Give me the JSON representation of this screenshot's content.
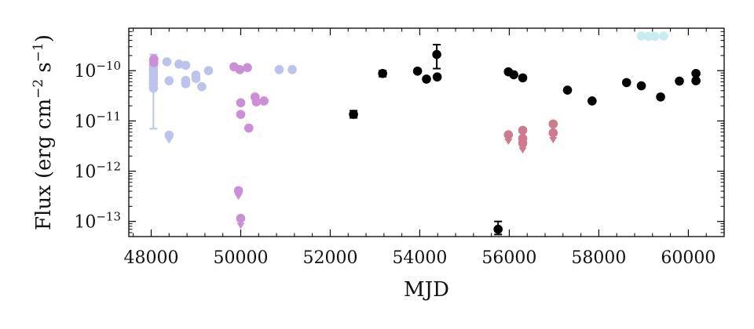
{
  "chart_data": {
    "type": "scatter",
    "title": "",
    "xlabel": "MJD",
    "ylabel_parts": {
      "main": "Flux (erg cm",
      "exp1": "−2",
      "mid": " s",
      "exp2": "−1",
      "close": ")"
    },
    "x_scale": "linear",
    "y_scale": "log",
    "xlim": [
      47500,
      60800
    ],
    "ylim": [
      5e-14,
      7e-10
    ],
    "xticks": [
      48000,
      50000,
      52000,
      54000,
      56000,
      58000,
      60000
    ],
    "xtick_labels": [
      "48000",
      "50000",
      "52000",
      "54000",
      "56000",
      "58000",
      "60000"
    ],
    "yticks": [
      1e-13,
      1e-12,
      1e-11,
      1e-10
    ],
    "ytick_labels": [
      {
        "base": "10",
        "exp": "−13"
      },
      {
        "base": "10",
        "exp": "−12"
      },
      {
        "base": "10",
        "exp": "−11"
      },
      {
        "base": "10",
        "exp": "−10"
      }
    ],
    "grid": false,
    "legend": "none",
    "series": [
      {
        "color": "#bcc4ee",
        "points": [
          {
            "x": 48050,
            "y": 1.6e-10,
            "err": [
              1.2e-10,
              2.1e-10
            ]
          },
          {
            "x": 48050,
            "y": 1.3e-10
          },
          {
            "x": 48050,
            "y": 1.1e-10
          },
          {
            "x": 48050,
            "y": 9.5e-11
          },
          {
            "x": 48050,
            "y": 8.5e-11
          },
          {
            "x": 48050,
            "y": 7.5e-11
          },
          {
            "x": 48050,
            "y": 6.5e-11
          },
          {
            "x": 48050,
            "y": 5.5e-11
          },
          {
            "x": 48050,
            "y": 4.5e-11,
            "err": [
              7e-12,
              7e-11
            ]
          },
          {
            "x": 48350,
            "y": 1.5e-10
          },
          {
            "x": 48400,
            "y": 6.3e-11
          },
          {
            "x": 48400,
            "y": 5.2e-12
          },
          {
            "x": 48400,
            "y": 4.2e-12,
            "upper_limit": true
          },
          {
            "x": 48620,
            "y": 1.35e-10
          },
          {
            "x": 48770,
            "y": 1.28e-10
          },
          {
            "x": 48770,
            "y": 6.4e-11
          },
          {
            "x": 48770,
            "y": 5.5e-11
          },
          {
            "x": 49000,
            "y": 8.2e-11
          },
          {
            "x": 49000,
            "y": 7e-11
          },
          {
            "x": 49130,
            "y": 4.8e-11
          },
          {
            "x": 49280,
            "y": 1e-10
          },
          {
            "x": 50860,
            "y": 1.05e-10
          },
          {
            "x": 51150,
            "y": 1.05e-10
          }
        ]
      },
      {
        "color": "#cc8ed6",
        "points": [
          {
            "x": 48060,
            "y": 1.7e-10
          },
          {
            "x": 48060,
            "y": 1.45e-10
          },
          {
            "x": 49850,
            "y": 1.2e-10
          },
          {
            "x": 49980,
            "y": 1.05e-10
          },
          {
            "x": 50150,
            "y": 1.15e-10
          },
          {
            "x": 50000,
            "y": 2.3e-11
          },
          {
            "x": 50000,
            "y": 1.35e-11
          },
          {
            "x": 50180,
            "y": 7.2e-12
          },
          {
            "x": 50320,
            "y": 3e-11
          },
          {
            "x": 50350,
            "y": 2.4e-11
          },
          {
            "x": 50520,
            "y": 2.5e-11
          },
          {
            "x": 49950,
            "y": 4.1e-13
          },
          {
            "x": 49950,
            "y": 3.2e-13,
            "upper_limit": true
          },
          {
            "x": 50000,
            "y": 1.15e-13
          },
          {
            "x": 50000,
            "y": 8.5e-14,
            "upper_limit": true
          }
        ]
      },
      {
        "color": "#000000",
        "points": [
          {
            "x": 52520,
            "y": 1.35e-11,
            "err": [
              1.15e-11,
              1.6e-11
            ]
          },
          {
            "x": 53170,
            "y": 8.8e-11,
            "err": [
              7.6e-11,
              1e-10
            ]
          },
          {
            "x": 53950,
            "y": 9.8e-11
          },
          {
            "x": 54150,
            "y": 6.8e-11
          },
          {
            "x": 54380,
            "y": 2.1e-10,
            "err": [
              1.1e-10,
              3.3e-10
            ]
          },
          {
            "x": 54390,
            "y": 7.5e-11
          },
          {
            "x": 55750,
            "y": 7e-14,
            "err": [
              5.5e-14,
              1e-13
            ]
          },
          {
            "x": 55980,
            "y": 9.5e-11
          },
          {
            "x": 56100,
            "y": 8.3e-11
          },
          {
            "x": 56300,
            "y": 7.2e-11
          },
          {
            "x": 57300,
            "y": 4.1e-11
          },
          {
            "x": 57850,
            "y": 2.5e-11
          },
          {
            "x": 58620,
            "y": 5.8e-11
          },
          {
            "x": 58950,
            "y": 5e-11
          },
          {
            "x": 59380,
            "y": 3e-11
          },
          {
            "x": 59800,
            "y": 6.2e-11
          },
          {
            "x": 60170,
            "y": 8.8e-11
          },
          {
            "x": 60170,
            "y": 6.3e-11
          }
        ]
      },
      {
        "color": "#cf7a8f",
        "points": [
          {
            "x": 55980,
            "y": 5.3e-12
          },
          {
            "x": 55980,
            "y": 4e-12,
            "upper_limit": true
          },
          {
            "x": 56300,
            "y": 6.5e-12
          },
          {
            "x": 56300,
            "y": 4.5e-12
          },
          {
            "x": 56300,
            "y": 3.6e-12
          },
          {
            "x": 56300,
            "y": 3.2e-12,
            "upper_limit": true
          },
          {
            "x": 56300,
            "y": 2.7e-12,
            "upper_limit": true
          },
          {
            "x": 56980,
            "y": 8.7e-12
          },
          {
            "x": 56980,
            "y": 5.8e-12
          },
          {
            "x": 56980,
            "y": 4.3e-12,
            "upper_limit": true
          }
        ]
      },
      {
        "color": "#c8ecef",
        "points": [
          {
            "x": 58950,
            "y": 4.9e-10
          },
          {
            "x": 59100,
            "y": 4.8e-10
          },
          {
            "x": 59250,
            "y": 4.8e-10
          },
          {
            "x": 59450,
            "y": 4.9e-10
          }
        ]
      }
    ]
  }
}
